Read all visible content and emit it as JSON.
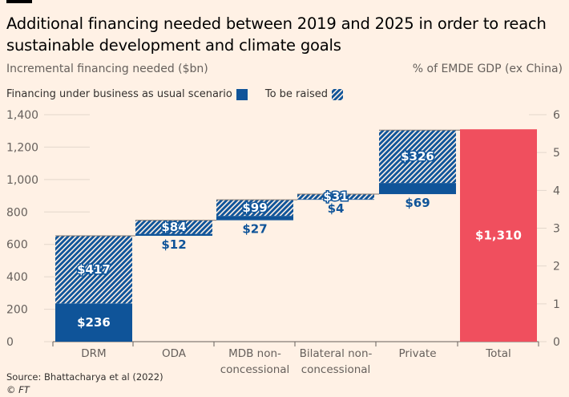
{
  "header": {
    "title": "Additional financing needed between 2019 and 2025 in order to reach sustainable development and climate goals",
    "left_subtitle": "Incremental financing needed ($bn)",
    "right_subtitle": "% of EMDE GDP (ex China)"
  },
  "footer": {
    "source": "Source: Bhattacharya et al (2022)",
    "credit": "© FT"
  },
  "colors": {
    "solid": "#0f5499",
    "hatch": "#0f5499",
    "total": "#f04f5e",
    "background": "#fff1e5"
  },
  "chart_data": {
    "type": "bar",
    "subtype": "waterfall",
    "categories": [
      "DRM",
      "ODA",
      "MDB non-concessional",
      "Bilateral non-concessional",
      "Private",
      "Total"
    ],
    "category_lines": [
      [
        "DRM"
      ],
      [
        "ODA"
      ],
      [
        "MDB non-",
        "concessional"
      ],
      [
        "Bilateral non-",
        "concessional"
      ],
      [
        "Private"
      ],
      [
        "Total"
      ]
    ],
    "series": [
      {
        "name": "Financing under business as usual scenario",
        "values": [
          236,
          12,
          27,
          4,
          69,
          null
        ],
        "labels": [
          "$236",
          "$12",
          "$27",
          "$4",
          "$69",
          ""
        ]
      },
      {
        "name": "To be raised",
        "values": [
          417,
          84,
          99,
          31,
          326,
          null
        ],
        "labels": [
          "$417",
          "$84",
          "$99",
          "$31",
          "$326",
          ""
        ]
      }
    ],
    "total": {
      "value": 1310,
      "label": "$1,310"
    },
    "ylim": [
      0,
      1400
    ],
    "yticks": [
      "0",
      "200",
      "400",
      "600",
      "800",
      "1,000",
      "1,200",
      "1,400"
    ],
    "y2lim": [
      0,
      6
    ],
    "y2ticks": [
      "0",
      "1",
      "2",
      "3",
      "4",
      "5",
      "6"
    ],
    "legend_position": "top-left"
  }
}
